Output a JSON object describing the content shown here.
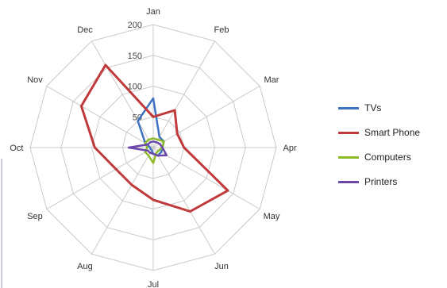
{
  "chart_data": {
    "type": "radar",
    "categories": [
      "Jan",
      "Feb",
      "Mar",
      "Apr",
      "May",
      "Jun",
      "Jul",
      "Aug",
      "Sep",
      "Oct",
      "Nov",
      "Dec"
    ],
    "rlim": [
      0,
      200
    ],
    "rticks": [
      0,
      50,
      100,
      150,
      200
    ],
    "rtick_labels": [
      "50",
      "100",
      "150",
      "200"
    ],
    "grid": true,
    "legend": "right",
    "series": [
      {
        "name": "TVs",
        "color": "#3f72c0",
        "values": [
          80,
          20,
          20,
          15,
          15,
          15,
          10,
          5,
          5,
          5,
          15,
          50
        ]
      },
      {
        "name": "Smart Phones",
        "color": "#c0393b",
        "values": [
          50,
          70,
          45,
          50,
          140,
          120,
          85,
          70,
          70,
          95,
          135,
          155
        ]
      },
      {
        "name": "Computers",
        "color": "#8cba29",
        "values": [
          15,
          15,
          20,
          15,
          10,
          10,
          25,
          15,
          15,
          10,
          15,
          15
        ]
      },
      {
        "name": "Printers",
        "color": "#6a47a8",
        "values": [
          10,
          10,
          12,
          15,
          25,
          15,
          10,
          10,
          10,
          40,
          10,
          10
        ]
      }
    ]
  },
  "legend": {
    "items": [
      {
        "label": "TVs",
        "color": "#3f72c0"
      },
      {
        "label": "Smart Phone",
        "color": "#c0393b"
      },
      {
        "label": "Computers",
        "color": "#8cba29"
      },
      {
        "label": "Printers",
        "color": "#6a47a8"
      }
    ]
  }
}
